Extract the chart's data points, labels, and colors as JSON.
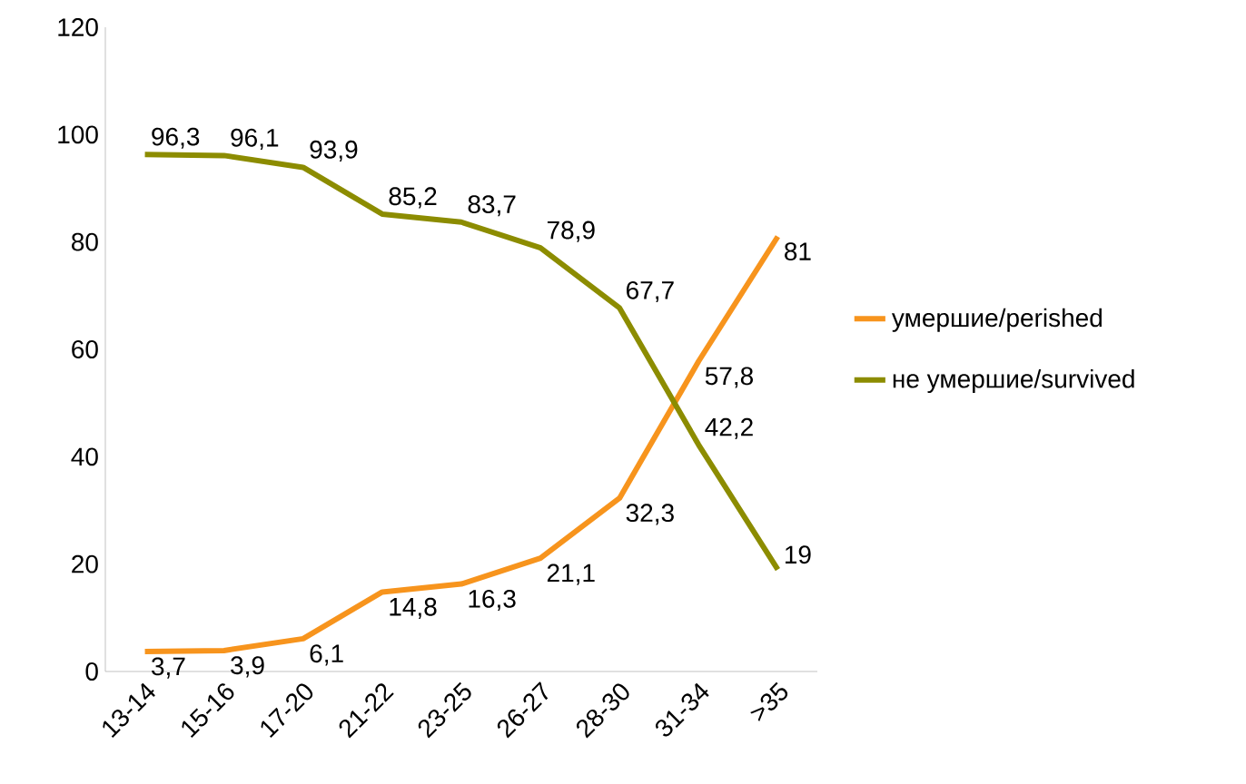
{
  "chart_data": {
    "type": "line",
    "categories": [
      "13-14",
      "15-16",
      "17-20",
      "21-22",
      "23-25",
      "26-27",
      "28-30",
      "31-34",
      ">35"
    ],
    "series": [
      {
        "name": "умершие/perished",
        "color": "#f7941d",
        "values": [
          3.7,
          3.9,
          6.1,
          14.8,
          16.3,
          21.1,
          32.3,
          57.8,
          81
        ],
        "value_labels": [
          "3,7",
          "3,9",
          "6,1",
          "14,8",
          "16,3",
          "21,1",
          "32,3",
          "57,8",
          "81"
        ]
      },
      {
        "name": "не умершие/survived",
        "color": "#8c8c00",
        "values": [
          96.3,
          96.1,
          93.9,
          85.2,
          83.7,
          78.9,
          67.7,
          42.2,
          19
        ],
        "value_labels": [
          "96,3",
          "96,1",
          "93,9",
          "85,2",
          "83,7",
          "78,9",
          "67,7",
          "42,2",
          "19"
        ]
      }
    ],
    "ylim": [
      0,
      120
    ],
    "yticks": [
      0,
      20,
      40,
      60,
      80,
      100,
      120
    ],
    "grid": false,
    "legend": "right",
    "marker": "none",
    "line_style": "solid"
  }
}
